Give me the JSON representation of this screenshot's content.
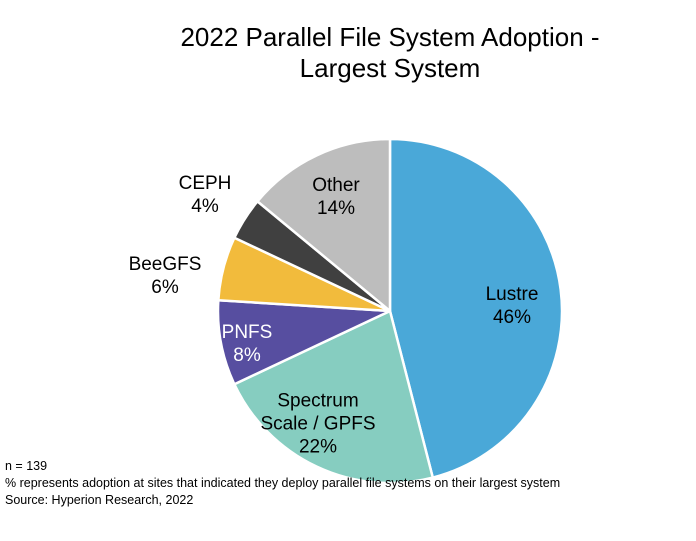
{
  "chart_data": {
    "type": "pie",
    "title": "2022 Parallel File System Adoption - Largest System",
    "categories": [
      "Lustre",
      "Spectrum Scale / GPFS",
      "PNFS",
      "BeeGFS",
      "CEPH",
      "Other"
    ],
    "values": [
      46,
      22,
      8,
      6,
      4,
      14
    ],
    "value_labels": [
      "46%",
      "22%",
      "8%",
      "6%",
      "4%",
      "14%"
    ],
    "colors": [
      "#4aa8d8",
      "#86cdc0",
      "#574ea0",
      "#f2bb3c",
      "#404040",
      "#bdbdbd"
    ],
    "notes": [
      "n = 139",
      "% represents adoption at sites that indicated they deploy parallel file systems on their largest system",
      "Source: Hyperion Research, 2022"
    ]
  }
}
